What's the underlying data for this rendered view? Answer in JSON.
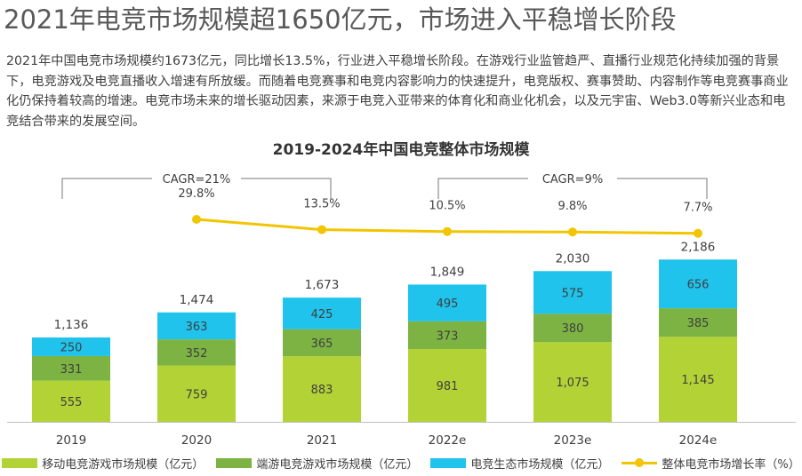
{
  "headline": "2021年电竞市场规模超1650亿元，市场进入平稳增长阶段",
  "paragraph": "2021年中国电竞市场规模约1673亿元，同比增长13.5%，行业进入平稳增长阶段。在游戏行业监管趋严、直播行业规范化持续加强的背景下，电竞游戏及电竞直播收入增速有所放缓。而随着电竞赛事和电竞内容影响力的快速提升，电竞版权、赛事赞助、内容制作等电竞赛事商业化仍保持着较高的增速。电竞市场未来的增长驱动因素，来源于电竞入亚带来的体育化和商业化机会，以及元宇宙、Web3.0等新兴业态和电竞结合带来的发展空间。",
  "colors": {
    "mobile": "#b3d235",
    "client": "#7cb342",
    "ecosystem": "#1fc3ec",
    "growth": "#f2c500",
    "bracket": "#777777"
  },
  "chart_data": {
    "type": "bar",
    "stacked": true,
    "title": "2019-2024年中国电竞整体市场规模",
    "categories": [
      "2019",
      "2020",
      "2021",
      "2022e",
      "2023e",
      "2024e"
    ],
    "series": [
      {
        "name": "移动电竞游戏市场规模（亿元）",
        "values": [
          555,
          759,
          883,
          981,
          1075,
          1145
        ],
        "labels": [
          "555",
          "759",
          "883",
          "981",
          "1,075",
          "1,145"
        ]
      },
      {
        "name": "端游电竞游戏市场规模（亿元）",
        "values": [
          331,
          352,
          365,
          373,
          380,
          385
        ],
        "labels": [
          "331",
          "352",
          "365",
          "373",
          "380",
          "385"
        ]
      },
      {
        "name": "电竞生态市场规模（亿元）",
        "values": [
          250,
          363,
          425,
          495,
          575,
          656
        ],
        "labels": [
          "250",
          "363",
          "425",
          "495",
          "575",
          "656"
        ]
      }
    ],
    "totals": [
      1136,
      1474,
      1673,
      1849,
      2030,
      2186
    ],
    "total_labels": [
      "1,136",
      "1,474",
      "1,673",
      "1,849",
      "2,030",
      "2,186"
    ],
    "line": {
      "name": "整体电竞市场增长率（%）",
      "categories": [
        "2020",
        "2021",
        "2022e",
        "2023e",
        "2024e"
      ],
      "values": [
        29.8,
        13.5,
        10.5,
        9.8,
        7.7
      ],
      "labels": [
        "29.8%",
        "13.5%",
        "10.5%",
        "9.8%",
        "7.7%"
      ]
    },
    "annotations": [
      {
        "text": "CAGR=21%",
        "from": "2019",
        "to": "2021"
      },
      {
        "text": "CAGR=9%",
        "from": "2022e",
        "to": "2024e"
      }
    ],
    "ylim": [
      0,
      2400
    ],
    "legend_position": "bottom"
  }
}
